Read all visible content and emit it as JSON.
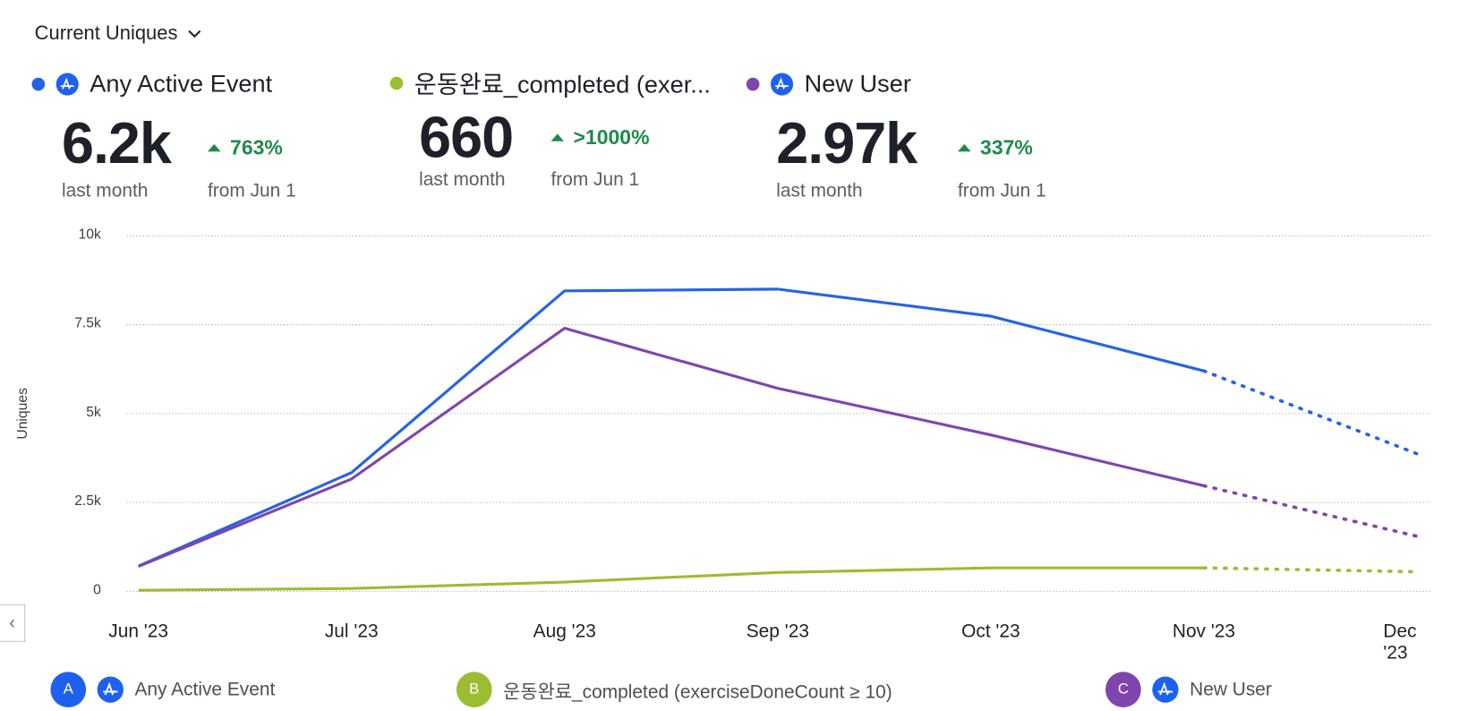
{
  "header": {
    "metric_select": "Current Uniques"
  },
  "colors": {
    "blue": "#2563e6",
    "green": "#9bbd32",
    "purple": "#7f45ad",
    "up": "#1f8a4c"
  },
  "series": [
    {
      "letter": "A",
      "name": "Any Active Event",
      "short_name": "Any Active Event",
      "value": "6.2k",
      "value_label": "last month",
      "change": "763%",
      "change_label": "from Jun 1",
      "color": "#2563e6",
      "icon": "amplitude-icon"
    },
    {
      "letter": "B",
      "name": "운동완료_completed (exerciseDoneCount ≥ 10)",
      "short_name": "운동완료_completed (exer...",
      "value": "660",
      "value_label": "last month",
      "change": ">1000%",
      "change_label": "from Jun 1",
      "color": "#9bbd32"
    },
    {
      "letter": "C",
      "name": "New User",
      "short_name": "New User",
      "value": "2.97k",
      "value_label": "last month",
      "change": "337%",
      "change_label": "from Jun 1",
      "color": "#7f45ad",
      "icon": "amplitude-icon"
    }
  ],
  "chart_data": {
    "type": "line",
    "ylabel": "Uniques",
    "ylim": [
      0,
      10000
    ],
    "yticks": [
      "0",
      "2.5k",
      "5k",
      "7.5k",
      "10k"
    ],
    "ytick_values": [
      0,
      2500,
      5000,
      7500,
      10000
    ],
    "categories": [
      "Jun '23",
      "Jul '23",
      "Aug '23",
      "Sep '23",
      "Oct '23",
      "Nov '23",
      "Dec '23"
    ],
    "grid": true,
    "incomplete_from_index": 5,
    "series": [
      {
        "name": "Any Active Event",
        "color": "#2563e6",
        "values": [
          710,
          3340,
          8450,
          8500,
          7740,
          6200,
          3870
        ]
      },
      {
        "name": "운동완료_completed (exerciseDoneCount ≥ 10)",
        "color": "#9bbd32",
        "values": [
          30,
          80,
          260,
          530,
          660,
          660,
          550
        ]
      },
      {
        "name": "New User",
        "color": "#7f45ad",
        "values": [
          700,
          3160,
          7400,
          5710,
          4400,
          2970,
          1550
        ]
      }
    ]
  }
}
